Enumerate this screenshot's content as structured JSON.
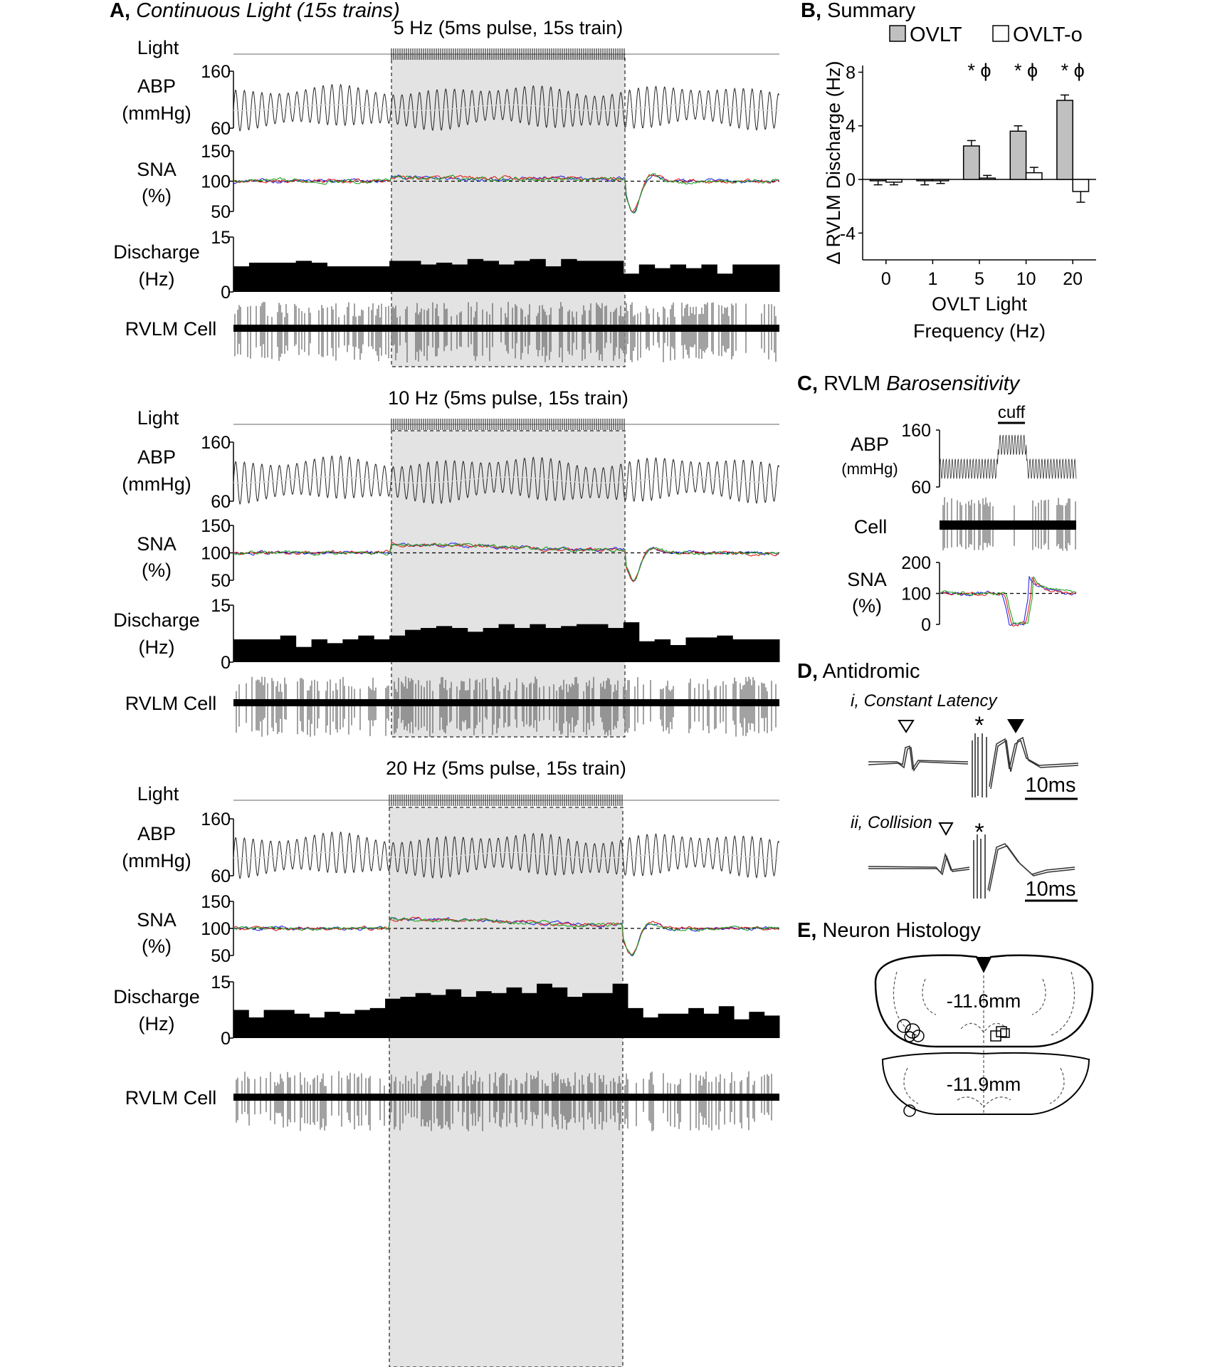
{
  "panel_a": {
    "letter": "A,",
    "title": "Continuous Light (15s trains)",
    "rows": [
      {
        "label": "5 Hz (5ms pulse, 15s train)",
        "light": "Light",
        "abp_label": "ABP",
        "abp_unit": "(mmHg)",
        "abp_ticks": [
          60,
          160
        ],
        "sna_label": "SNA",
        "sna_unit": "(%)",
        "sna_ticks": [
          50,
          100,
          150
        ],
        "discharge_label": "Discharge",
        "discharge_unit": "(Hz)",
        "discharge_ticks": [
          0,
          15
        ],
        "discharge": [
          7,
          8,
          8,
          8,
          8.5,
          8,
          7,
          7,
          7,
          7,
          8.5,
          8.5,
          7.5,
          8,
          7.5,
          9,
          8.5,
          7.5,
          8.5,
          9,
          7,
          9,
          8.5,
          8.5,
          8.5,
          5,
          7.5,
          6.5,
          7.5,
          6.5,
          7.5,
          5,
          7.5,
          7.5,
          7.5
        ],
        "cell_label": "RVLM Cell"
      },
      {
        "label": "10 Hz (5ms pulse, 15s train)",
        "light": "Light",
        "abp_label": "ABP",
        "abp_unit": "(mmHg)",
        "abp_ticks": [
          60,
          160
        ],
        "sna_label": "SNA",
        "sna_unit": "(%)",
        "sna_ticks": [
          50,
          100,
          150
        ],
        "discharge_label": "Discharge",
        "discharge_unit": "(Hz)",
        "discharge_ticks": [
          0,
          15
        ],
        "discharge": [
          6,
          6,
          6,
          7,
          4,
          6,
          5,
          6,
          7,
          6,
          7,
          8.5,
          9,
          9.5,
          9,
          8,
          9,
          10,
          9,
          10,
          9,
          9.5,
          10,
          10,
          9,
          10.5,
          5.5,
          6,
          4.5,
          6.5,
          6.5,
          7,
          6,
          6,
          6
        ],
        "cell_label": "RVLM Cell"
      },
      {
        "label": "20 Hz (5ms pulse, 15s train)",
        "light": "Light",
        "abp_label": "ABP",
        "abp_unit": "(mmHg)",
        "abp_ticks": [
          60,
          160
        ],
        "sna_label": "SNA",
        "sna_unit": "(%)",
        "sna_ticks": [
          50,
          100,
          150
        ],
        "discharge_label": "Discharge",
        "discharge_unit": "(Hz)",
        "discharge_ticks": [
          0,
          15
        ],
        "discharge": [
          7.5,
          5.5,
          7.5,
          7.5,
          6.5,
          5.5,
          7,
          6.5,
          7.5,
          8,
          10.5,
          11,
          12,
          11.5,
          13,
          11,
          12.5,
          12,
          13.5,
          12,
          14.5,
          13.5,
          11,
          12,
          12,
          14.5,
          8,
          5.5,
          6.5,
          6.5,
          8,
          6.5,
          8.5,
          5,
          7,
          6
        ],
        "cell_label": "RVLM Cell"
      }
    ]
  },
  "chart_data": {
    "type": "bar",
    "letter": "B,",
    "title": "Summary",
    "categories": [
      "0",
      "1",
      "5",
      "10",
      "20"
    ],
    "series": [
      {
        "name": "OVLT",
        "color": "#c0c0c0",
        "values": [
          -0.1,
          -0.1,
          2.5,
          3.6,
          5.9
        ],
        "errors": [
          0.3,
          0.3,
          0.4,
          0.4,
          0.4
        ]
      },
      {
        "name": "OVLT-o",
        "color": "#ffffff",
        "values": [
          -0.2,
          -0.1,
          0.1,
          0.5,
          -0.9
        ],
        "errors": [
          0.2,
          0.2,
          0.2,
          0.4,
          0.8
        ]
      }
    ],
    "ylim": [
      -6,
      8.5
    ],
    "yticks": [
      -4,
      0,
      4,
      8
    ],
    "y_label": "Δ RVLM Discharge (Hz)",
    "x_label": [
      "OVLT Light",
      "Frequency (Hz)"
    ],
    "annotations": [
      "* ϕ",
      "* ϕ",
      "* ϕ"
    ],
    "legend": "top"
  },
  "panel_c": {
    "letter": "C,",
    "title": "RVLM",
    "title_italic": "Barosensitivity",
    "cuff": "cuff",
    "abp_label": "ABP",
    "abp_unit": "(mmHg)",
    "abp_ticks": [
      60,
      160
    ],
    "cell_label": "Cell",
    "sna_label": "SNA",
    "sna_unit": "(%)",
    "sna_ticks": [
      0,
      100,
      200
    ]
  },
  "panel_d": {
    "letter": "D,",
    "title": "Antidromic",
    "i": {
      "label": "i, Constant Latency",
      "star": "*",
      "scale": "10ms"
    },
    "ii": {
      "label": "ii, Collision",
      "star": "*",
      "scale": "10ms"
    }
  },
  "panel_e": {
    "letter": "E,",
    "title": "Neuron Histology",
    "level_1": "-11.6mm",
    "level_2": "-11.9mm"
  }
}
